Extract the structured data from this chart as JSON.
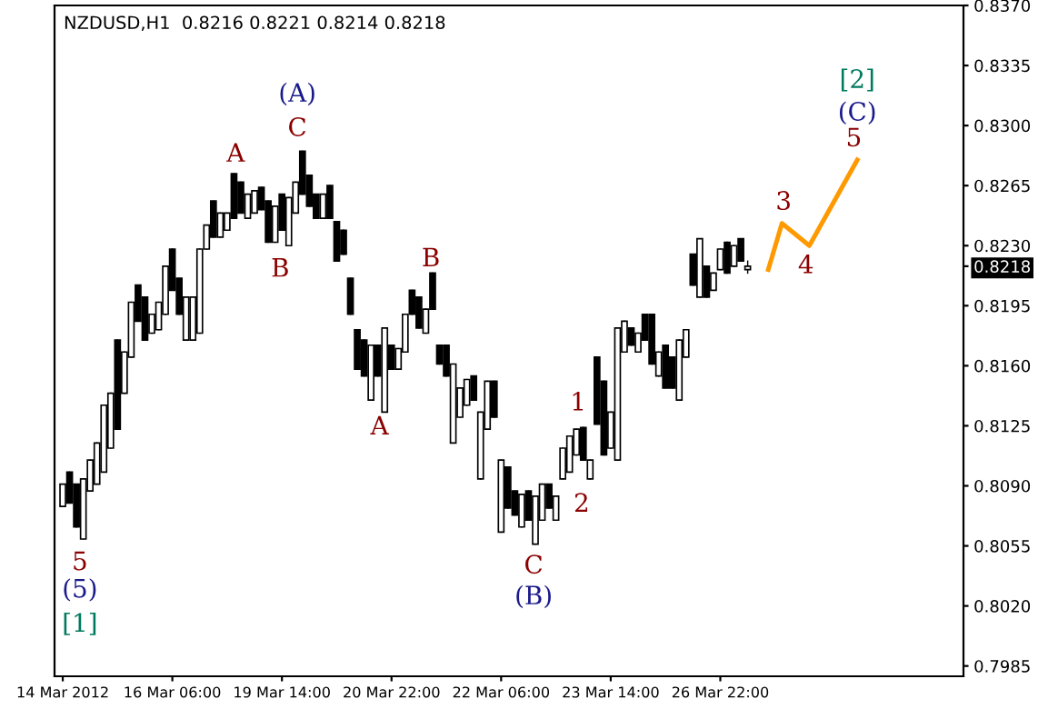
{
  "chart_data": {
    "type": "candlestick",
    "title": "NZDUSD,H1  0.8216 0.8221 0.8214 0.8218",
    "categories": [
      "14 Mar 2012",
      null,
      null,
      null,
      null,
      null,
      null,
      null,
      null,
      null,
      null,
      null,
      null,
      null,
      null,
      null,
      "16 Mar 06:00",
      null,
      null,
      null,
      null,
      null,
      null,
      null,
      null,
      null,
      null,
      null,
      null,
      null,
      null,
      null,
      "19 Mar 14:00",
      null,
      null,
      null,
      null,
      null,
      null,
      null,
      null,
      null,
      null,
      null,
      null,
      null,
      null,
      null,
      "20 Mar 22:00",
      null,
      null,
      null,
      null,
      null,
      null,
      null,
      null,
      null,
      null,
      null,
      null,
      null,
      null,
      null,
      "22 Mar 06:00",
      null,
      null,
      null,
      null,
      null,
      null,
      null,
      null,
      null,
      null,
      null,
      null,
      null,
      null,
      null,
      "23 Mar 14:00",
      null,
      null,
      null,
      null,
      null,
      null,
      null,
      null,
      null,
      null,
      null,
      null,
      null,
      null,
      null,
      "26 Mar 22:00",
      null,
      null,
      null,
      null,
      null,
      null,
      null,
      null,
      null,
      null,
      null,
      null,
      null,
      null,
      null,
      null,
      null,
      null,
      null,
      null,
      null,
      null,
      null,
      null,
      null,
      null,
      null,
      null,
      null,
      null,
      null,
      null,
      null,
      null,
      null
    ],
    "ohlc": [
      [
        0.8078,
        0.8091,
        0.8078,
        0.8091
      ],
      [
        0.8098,
        0.8098,
        0.808,
        0.808
      ],
      [
        0.8091,
        0.8091,
        0.8066,
        0.8066
      ],
      [
        0.8059,
        0.8094,
        0.8059,
        0.8094
      ],
      [
        0.8087,
        0.8105,
        0.8087,
        0.8105
      ],
      [
        0.8091,
        0.8115,
        0.8091,
        0.8115
      ],
      [
        0.8098,
        0.8137,
        0.8098,
        0.8137
      ],
      [
        0.8112,
        0.8144,
        0.8112,
        0.8144
      ],
      [
        0.8175,
        0.8175,
        0.8123,
        0.8123
      ],
      [
        0.8144,
        0.8168,
        0.8144,
        0.8168
      ],
      [
        0.8165,
        0.8197,
        0.8165,
        0.8197
      ],
      [
        0.8207,
        0.8207,
        0.8186,
        0.8186
      ],
      [
        0.82,
        0.82,
        0.8175,
        0.8175
      ],
      [
        0.8179,
        0.819,
        0.8179,
        0.819
      ],
      [
        0.8181,
        0.8197,
        0.8181,
        0.8197
      ],
      [
        0.819,
        0.8218,
        0.819,
        0.8218
      ],
      [
        0.8228,
        0.8228,
        0.8204,
        0.8204
      ],
      [
        0.8211,
        0.8211,
        0.819,
        0.819
      ],
      [
        0.8175,
        0.82,
        0.8175,
        0.82
      ],
      [
        0.8175,
        0.82,
        0.8175,
        0.82
      ],
      [
        0.8179,
        0.8228,
        0.8179,
        0.8228
      ],
      [
        0.8228,
        0.8242,
        0.8228,
        0.8242
      ],
      [
        0.8256,
        0.8256,
        0.8235,
        0.8235
      ],
      [
        0.8235,
        0.8249,
        0.8235,
        0.8249
      ],
      [
        0.8239,
        0.8249,
        0.8239,
        0.8249
      ],
      [
        0.8272,
        0.8272,
        0.8246,
        0.8246
      ],
      [
        0.8267,
        0.8267,
        0.8249,
        0.8249
      ],
      [
        0.8246,
        0.826,
        0.8246,
        0.826
      ],
      [
        0.8249,
        0.8262,
        0.8249,
        0.8262
      ],
      [
        0.8264,
        0.8264,
        0.8251,
        0.8251
      ],
      [
        0.8256,
        0.8256,
        0.8232,
        0.8232
      ],
      [
        0.8232,
        0.8253,
        0.8232,
        0.8253
      ],
      [
        0.826,
        0.826,
        0.8239,
        0.8239
      ],
      [
        0.823,
        0.8258,
        0.823,
        0.8258
      ],
      [
        0.8249,
        0.8267,
        0.8249,
        0.8267
      ],
      [
        0.8285,
        0.8285,
        0.826,
        0.826
      ],
      [
        0.8271,
        0.8271,
        0.8253,
        0.8253
      ],
      [
        0.826,
        0.826,
        0.8246,
        0.8246
      ],
      [
        0.8246,
        0.826,
        0.8246,
        0.826
      ],
      [
        0.8265,
        0.8265,
        0.8246,
        0.8246
      ],
      [
        0.8244,
        0.8244,
        0.8221,
        0.8221
      ],
      [
        0.8239,
        0.8239,
        0.8225,
        0.8225
      ],
      [
        0.8211,
        0.8211,
        0.819,
        0.819
      ],
      [
        0.8181,
        0.8181,
        0.8158,
        0.8158
      ],
      [
        0.8175,
        0.8175,
        0.8154,
        0.8154
      ],
      [
        0.814,
        0.8172,
        0.814,
        0.8172
      ],
      [
        0.8172,
        0.8172,
        0.8154,
        0.8154
      ],
      [
        0.8133,
        0.8182,
        0.8133,
        0.8182
      ],
      [
        0.8172,
        0.8172,
        0.8158,
        0.8158
      ],
      [
        0.8158,
        0.817,
        0.8158,
        0.817
      ],
      [
        0.8168,
        0.819,
        0.8168,
        0.819
      ],
      [
        0.8204,
        0.8204,
        0.819,
        0.819
      ],
      [
        0.82,
        0.82,
        0.8182,
        0.8182
      ],
      [
        0.8179,
        0.8193,
        0.8179,
        0.8193
      ],
      [
        0.8214,
        0.8214,
        0.8193,
        0.8193
      ],
      [
        0.8172,
        0.8172,
        0.8161,
        0.8161
      ],
      [
        0.8172,
        0.8172,
        0.8154,
        0.8154
      ],
      [
        0.8115,
        0.8161,
        0.8115,
        0.8161
      ],
      [
        0.813,
        0.8147,
        0.813,
        0.8147
      ],
      [
        0.8137,
        0.8152,
        0.8137,
        0.8152
      ],
      [
        0.8154,
        0.8154,
        0.814,
        0.814
      ],
      [
        0.8094,
        0.8133,
        0.8094,
        0.8133
      ],
      [
        0.8123,
        0.8151,
        0.8123,
        0.8151
      ],
      [
        0.8151,
        0.8151,
        0.813,
        0.813
      ],
      [
        0.8063,
        0.8105,
        0.8063,
        0.8105
      ],
      [
        0.8101,
        0.8101,
        0.8077,
        0.8077
      ],
      [
        0.8087,
        0.8087,
        0.8073,
        0.8073
      ],
      [
        0.8066,
        0.8085,
        0.8066,
        0.8085
      ],
      [
        0.8087,
        0.8087,
        0.807,
        0.807
      ],
      [
        0.8056,
        0.8084,
        0.8056,
        0.8084
      ],
      [
        0.807,
        0.8091,
        0.807,
        0.8091
      ],
      [
        0.8091,
        0.8091,
        0.8077,
        0.8077
      ],
      [
        0.807,
        0.8084,
        0.807,
        0.8084
      ],
      [
        0.8094,
        0.8112,
        0.8094,
        0.8112
      ],
      [
        0.8098,
        0.8119,
        0.8098,
        0.8119
      ],
      [
        0.8108,
        0.8123,
        0.8108,
        0.8123
      ],
      [
        0.8124,
        0.8124,
        0.8105,
        0.8105
      ],
      [
        0.8094,
        0.8105,
        0.8094,
        0.8105
      ],
      [
        0.8165,
        0.8165,
        0.8126,
        0.8126
      ],
      [
        0.8151,
        0.8151,
        0.8108,
        0.8108
      ],
      [
        0.8112,
        0.8133,
        0.8112,
        0.8133
      ],
      [
        0.8105,
        0.8182,
        0.8105,
        0.8182
      ],
      [
        0.8168,
        0.8186,
        0.8168,
        0.8186
      ],
      [
        0.8182,
        0.8182,
        0.8172,
        0.8172
      ],
      [
        0.8168,
        0.8179,
        0.8168,
        0.8179
      ],
      [
        0.819,
        0.819,
        0.8175,
        0.8175
      ],
      [
        0.819,
        0.819,
        0.8161,
        0.8161
      ],
      [
        0.8154,
        0.8168,
        0.8154,
        0.8168
      ],
      [
        0.8172,
        0.8172,
        0.8147,
        0.8147
      ],
      [
        0.8165,
        0.8165,
        0.8147,
        0.8147
      ],
      [
        0.814,
        0.8175,
        0.814,
        0.8175
      ],
      [
        0.8165,
        0.8181,
        0.8165,
        0.8181
      ],
      [
        0.8225,
        0.8225,
        0.8207,
        0.8207
      ],
      [
        0.82,
        0.8234,
        0.82,
        0.8234
      ],
      [
        0.8218,
        0.8218,
        0.82,
        0.82
      ],
      [
        0.8204,
        0.8214,
        0.8204,
        0.8214
      ],
      [
        0.8216,
        0.8228,
        0.8216,
        0.8228
      ],
      [
        0.8232,
        0.8232,
        0.8214,
        0.8214
      ],
      [
        0.8218,
        0.823,
        0.8218,
        0.823
      ],
      [
        0.8234,
        0.8234,
        0.8221,
        0.8221
      ],
      [
        0.8216,
        0.8221,
        0.8214,
        0.8218
      ],
      null,
      null,
      null,
      null,
      null,
      null,
      null,
      null,
      null,
      null,
      null,
      null,
      null,
      null,
      null,
      null,
      null,
      null,
      null,
      null,
      null,
      null,
      null,
      null,
      null,
      null,
      null,
      null,
      null,
      null,
      null
    ],
    "color": "#000000",
    "series": [
      {
        "type": "line",
        "color": "#ff9900",
        "values": [
          null,
          null,
          null,
          null,
          null,
          null,
          null,
          null,
          null,
          null,
          null,
          null,
          null,
          null,
          null,
          null,
          null,
          null,
          null,
          null,
          null,
          null,
          null,
          null,
          null,
          null,
          null,
          null,
          null,
          null,
          null,
          null,
          null,
          null,
          null,
          null,
          null,
          null,
          null,
          null,
          null,
          null,
          null,
          null,
          null,
          null,
          null,
          null,
          null,
          null,
          null,
          null,
          null,
          null,
          null,
          null,
          null,
          null,
          null,
          null,
          null,
          null,
          null,
          null,
          null,
          null,
          null,
          null,
          null,
          null,
          null,
          null,
          null,
          null,
          null,
          null,
          null,
          null,
          null,
          null,
          null,
          null,
          null,
          null,
          null,
          null,
          null,
          null,
          null,
          null,
          null,
          null,
          null,
          null,
          null,
          null,
          null,
          null,
          null,
          null,
          null,
          null,
          null,
          0.8216,
          null,
          0.8243,
          null,
          null,
          null,
          0.823,
          null,
          null,
          null,
          null,
          null,
          null,
          0.828,
          null,
          null,
          null,
          null,
          null,
          null,
          null,
          null,
          null,
          null,
          null,
          null,
          null,
          null,
          null
        ]
      }
    ],
    "ylim": [
      0.7979,
      0.837
    ],
    "yticks": [
      {
        "value": 0.7985,
        "label": "0.7985"
      },
      {
        "value": 0.802,
        "label": "0.8020"
      },
      {
        "value": 0.8055,
        "label": "0.8055"
      },
      {
        "value": 0.809,
        "label": "0.8090"
      },
      {
        "value": 0.8125,
        "label": "0.8125"
      },
      {
        "value": 0.816,
        "label": "0.8160"
      },
      {
        "value": 0.8195,
        "label": "0.8195"
      },
      {
        "value": 0.8218,
        "label": "0.8218"
      },
      {
        "value": 0.823,
        "label": "0.8230"
      },
      {
        "value": 0.8265,
        "label": "0.8265"
      },
      {
        "value": 0.83,
        "label": "0.8300"
      },
      {
        "value": 0.8335,
        "label": "0.8335"
      },
      {
        "value": 0.837,
        "label": "0.8370"
      }
    ],
    "grid": false,
    "legend": false,
    "annotations": [
      "5",
      "(5)",
      "[1]",
      "A",
      "(A)",
      "C",
      "B",
      "A",
      "B",
      "1",
      "2",
      "C",
      "(B)",
      "3",
      "4",
      "5",
      "(C)",
      "[2]"
    ]
  }
}
